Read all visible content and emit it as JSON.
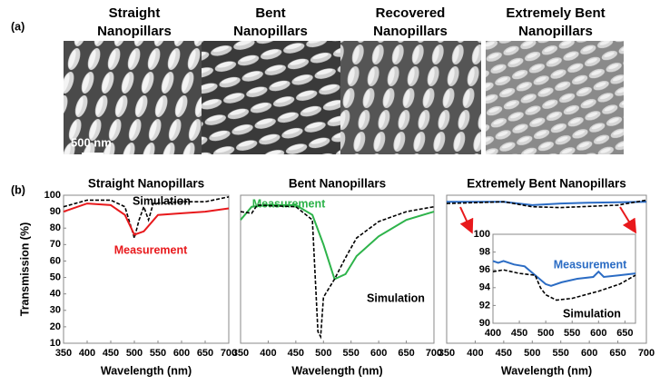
{
  "panel_a": {
    "label": "(a)",
    "scale_bar": "500 nm",
    "images": [
      {
        "title": [
          "Straight",
          "Nanopillars"
        ]
      },
      {
        "title": [
          "Bent",
          "Nanopillars"
        ]
      },
      {
        "title": [
          "Recovered",
          "Nanopillars"
        ]
      },
      {
        "title": [
          "Extremely Bent",
          "Nanopillars"
        ]
      }
    ]
  },
  "panel_b": {
    "label": "(b)"
  },
  "chart_data": [
    {
      "type": "line",
      "title": "Straight Nanopillars",
      "x_label": "Wavelength (nm)",
      "y_label": "Transmission (%)",
      "xlim": [
        350,
        700
      ],
      "xticks": [
        350,
        400,
        450,
        500,
        550,
        600,
        650,
        700
      ],
      "ylim": [
        10,
        100
      ],
      "yticks": [
        10,
        20,
        30,
        40,
        50,
        60,
        70,
        80,
        90,
        100
      ],
      "series": [
        {
          "name": "Simulation",
          "color": "#000000",
          "dash": true,
          "x": [
            350,
            400,
            450,
            480,
            500,
            510,
            520,
            530,
            540,
            600,
            650,
            700
          ],
          "values": [
            93,
            97,
            97,
            93,
            74,
            85,
            93,
            85,
            95,
            96,
            96,
            99
          ]
        },
        {
          "name": "Measurement",
          "color": "#e8191c",
          "dash": false,
          "x": [
            350,
            400,
            450,
            480,
            500,
            520,
            550,
            600,
            650,
            700
          ],
          "values": [
            90,
            95,
            94,
            88,
            76,
            78,
            88,
            89,
            90,
            92
          ]
        }
      ]
    },
    {
      "type": "line",
      "title": "Bent Nanopillars",
      "x_label": "Wavelength (nm)",
      "xlim": [
        350,
        700
      ],
      "xticks": [
        350,
        400,
        450,
        500,
        550,
        600,
        650,
        700
      ],
      "ylim": [
        10,
        100
      ],
      "series": [
        {
          "name": "Measurement",
          "color": "#2db34a",
          "dash": false,
          "x": [
            350,
            370,
            400,
            450,
            480,
            500,
            520,
            540,
            560,
            600,
            650,
            700
          ],
          "values": [
            85,
            93,
            94,
            94,
            88,
            70,
            49,
            52,
            63,
            75,
            85,
            90
          ]
        },
        {
          "name": "Simulation",
          "color": "#000000",
          "dash": true,
          "x": [
            350,
            370,
            380,
            450,
            480,
            490,
            495,
            500,
            520,
            540,
            560,
            600,
            650,
            700
          ],
          "values": [
            90,
            89,
            94,
            93,
            85,
            17,
            14,
            38,
            49,
            62,
            74,
            84,
            90,
            93
          ]
        }
      ]
    },
    {
      "type": "line",
      "title": "Extremely Bent Nanopillars",
      "x_label": "Wavelength (nm)",
      "xlim": [
        350,
        700
      ],
      "xticks": [
        350,
        400,
        450,
        500,
        550,
        600,
        650,
        700
      ],
      "ylim": [
        10,
        100
      ],
      "series": [
        {
          "color": "#2b6cc4",
          "dash": false,
          "x": [
            350,
            450,
            500,
            550,
            600,
            700
          ],
          "values": [
            96,
            96,
            94,
            95,
            95.5,
            96
          ]
        },
        {
          "color": "#000000",
          "dash": true,
          "x": [
            350,
            450,
            500,
            550,
            650,
            700
          ],
          "values": [
            95,
            96,
            93,
            92.5,
            94,
            97
          ]
        }
      ],
      "inset": {
        "type": "line",
        "xlim": [
          400,
          670
        ],
        "xticks": [
          400,
          450,
          500,
          550,
          600,
          650
        ],
        "ylim": [
          90,
          100
        ],
        "yticks": [
          90,
          92,
          94,
          96,
          98,
          100
        ],
        "series": [
          {
            "name": "Measurement",
            "color": "#2b6cc4",
            "dash": false,
            "x": [
              400,
              410,
              420,
              440,
              460,
              480,
              500,
              510,
              530,
              560,
              590,
              600,
              610,
              640,
              670
            ],
            "values": [
              97,
              96.8,
              97,
              96.6,
              96.4,
              95.4,
              94.4,
              94.2,
              94.6,
              95,
              95.2,
              95.8,
              95.2,
              95.4,
              95.6
            ]
          },
          {
            "name": "Simulation",
            "color": "#000000",
            "dash": true,
            "x": [
              400,
              420,
              450,
              480,
              490,
              500,
              520,
              550,
              600,
              640,
              670
            ],
            "values": [
              95.8,
              96,
              95.6,
              95.4,
              94,
              93.2,
              92.6,
              92.8,
              93.6,
              94.4,
              95.4
            ]
          }
        ]
      }
    }
  ]
}
